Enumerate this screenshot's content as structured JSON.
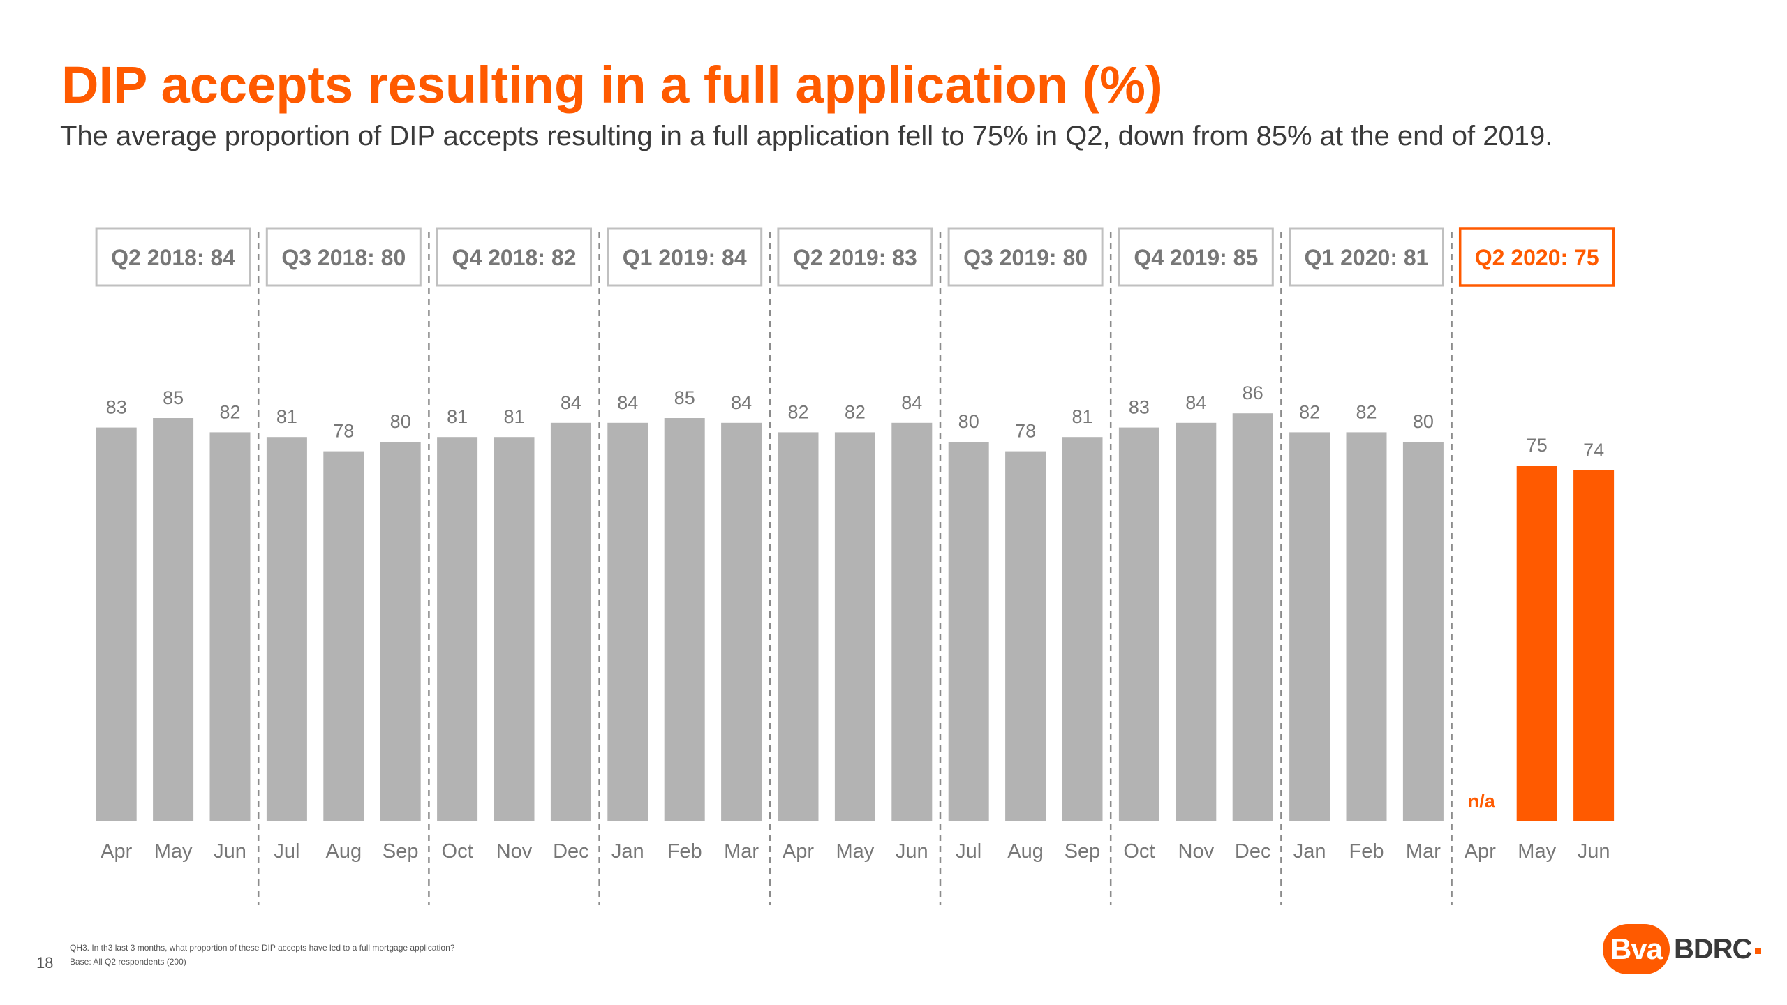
{
  "title": "DIP accepts resulting in a full application (%)",
  "subtitle": "The average proportion of DIP accepts resulting in a full application fell to 75% in Q2, down from 85% at the end of 2019.",
  "footnote": {
    "question": "QH3. In th3 last 3 months, what proportion of these DIP accepts have led to a full mortgage application?",
    "base": "Base: All Q2 respondents (200)"
  },
  "page_number": "18",
  "logo": {
    "badge_text": "Bva",
    "word": "BDRC"
  },
  "colors": {
    "title": "#ff5a00",
    "accent": "#ff5a00",
    "bar_grey": "#b3b3b3",
    "label_grey": "#777777",
    "box_border_grey": "#c0c0c0",
    "divider": "#8c8c8c"
  },
  "chart_data": {
    "type": "bar",
    "ylim": [
      0,
      100
    ],
    "categories": [
      "Apr",
      "May",
      "Jun",
      "Jul",
      "Aug",
      "Sep",
      "Oct",
      "Nov",
      "Dec",
      "Jan",
      "Feb",
      "Mar",
      "Apr",
      "May",
      "Jun",
      "Jul",
      "Aug",
      "Sep",
      "Oct",
      "Nov",
      "Dec",
      "Jan",
      "Feb",
      "Mar",
      "Apr",
      "May",
      "Jun"
    ],
    "values": [
      83,
      85,
      82,
      81,
      78,
      80,
      81,
      81,
      84,
      84,
      85,
      84,
      82,
      82,
      84,
      80,
      78,
      81,
      83,
      84,
      86,
      82,
      82,
      80,
      null,
      75,
      74
    ],
    "missing_label": "n/a",
    "highlight_quarter_index": 8,
    "quarters": [
      {
        "label": "Q2 2018: 84"
      },
      {
        "label": "Q3 2018: 80"
      },
      {
        "label": "Q4 2018: 82"
      },
      {
        "label": "Q1 2019: 84"
      },
      {
        "label": "Q2 2019: 83"
      },
      {
        "label": "Q3 2019: 80"
      },
      {
        "label": "Q4 2019: 85"
      },
      {
        "label": "Q1 2020: 81"
      },
      {
        "label": "Q2 2020: 75"
      }
    ]
  }
}
